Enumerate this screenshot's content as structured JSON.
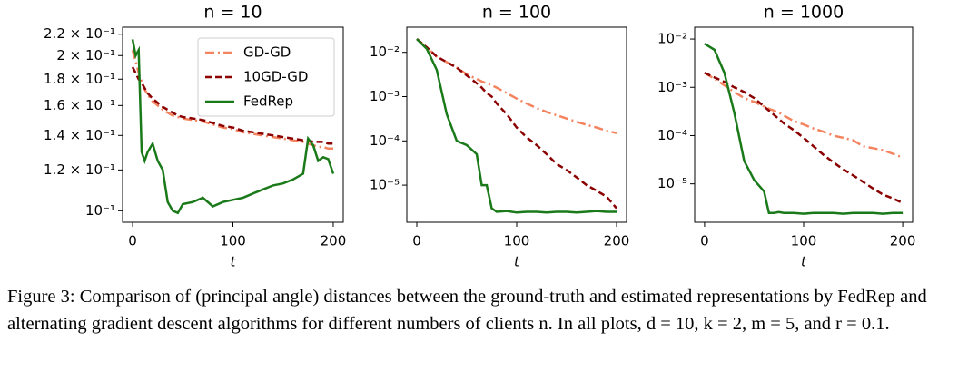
{
  "chart_data": [
    {
      "type": "line",
      "title": "n = 10",
      "xlabel": "t",
      "x": [
        0,
        3,
        6,
        9,
        12,
        15,
        20,
        25,
        30,
        35,
        40,
        45,
        50,
        60,
        70,
        80,
        90,
        100,
        110,
        120,
        130,
        140,
        150,
        160,
        170,
        175,
        180,
        185,
        190,
        195,
        200
      ],
      "xlim": [
        -10,
        210
      ],
      "xticks": [
        0,
        100,
        200
      ],
      "ylim": [
        0.095,
        0.227
      ],
      "yscale": "log",
      "yticks": [
        {
          "value": 0.1,
          "label": "10⁻¹"
        },
        {
          "value": 0.12,
          "label": "1.2 × 10⁻¹"
        },
        {
          "value": 0.14,
          "label": "1.4 × 10⁻¹"
        },
        {
          "value": 0.16,
          "label": "1.6 × 10⁻¹"
        },
        {
          "value": 0.18,
          "label": "1.8 × 10⁻¹"
        },
        {
          "value": 0.2,
          "label": "2 × 10⁻¹"
        },
        {
          "value": 0.22,
          "label": "2.2 × 10⁻¹"
        }
      ],
      "legend": "upper right",
      "series": [
        {
          "name": "GD-GD",
          "color": "#f4845f",
          "style": "dash-dot",
          "values": [
            0.205,
            0.195,
            0.185,
            0.178,
            0.172,
            0.168,
            0.163,
            0.16,
            0.157,
            0.155,
            0.153,
            0.152,
            0.151,
            0.15,
            0.149,
            0.147,
            0.145,
            0.144,
            0.142,
            0.141,
            0.14,
            0.139,
            0.138,
            0.137,
            0.136,
            0.135,
            0.134,
            0.133,
            0.133,
            0.132,
            0.132
          ]
        },
        {
          "name": "10GD-GD",
          "color": "#8b0000",
          "style": "dashed",
          "values": [
            0.19,
            0.185,
            0.18,
            0.177,
            0.173,
            0.169,
            0.165,
            0.162,
            0.159,
            0.157,
            0.155,
            0.153,
            0.152,
            0.151,
            0.15,
            0.148,
            0.146,
            0.145,
            0.143,
            0.142,
            0.141,
            0.14,
            0.139,
            0.138,
            0.137,
            0.137,
            0.136,
            0.136,
            0.136,
            0.135,
            0.135
          ]
        },
        {
          "name": "FedRep",
          "color": "#1a7a1a",
          "style": "solid",
          "values": [
            0.215,
            0.2,
            0.205,
            0.13,
            0.125,
            0.13,
            0.135,
            0.125,
            0.12,
            0.104,
            0.1,
            0.099,
            0.103,
            0.104,
            0.106,
            0.102,
            0.104,
            0.105,
            0.106,
            0.108,
            0.11,
            0.112,
            0.113,
            0.115,
            0.118,
            0.138,
            0.134,
            0.125,
            0.127,
            0.126,
            0.118
          ]
        }
      ]
    },
    {
      "type": "line",
      "title": "n = 100",
      "xlabel": "t",
      "x": [
        0,
        10,
        20,
        30,
        40,
        50,
        60,
        65,
        70,
        75,
        80,
        90,
        100,
        110,
        120,
        130,
        140,
        150,
        160,
        170,
        180,
        190,
        200
      ],
      "xlim": [
        -10,
        210
      ],
      "xticks": [
        0,
        100,
        200
      ],
      "ylim": [
        1.45e-06,
        0.037
      ],
      "yscale": "log",
      "yticks": [
        {
          "value": 1e-05,
          "label": "10⁻⁵"
        },
        {
          "value": 0.0001,
          "label": "10⁻⁴"
        },
        {
          "value": 0.001,
          "label": "10⁻³"
        },
        {
          "value": 0.01,
          "label": "10⁻²"
        }
      ],
      "series": [
        {
          "color": "#f4845f",
          "style": "dash-dot",
          "values": [
            0.02,
            0.013,
            0.008,
            0.006,
            0.0045,
            0.0032,
            0.0025,
            0.0022,
            0.002,
            0.0018,
            0.0016,
            0.0012,
            0.0009,
            0.0007,
            0.00055,
            0.00045,
            0.00038,
            0.00032,
            0.00027,
            0.00023,
            0.0002,
            0.00017,
            0.00015
          ]
        },
        {
          "color": "#8b0000",
          "style": "dashed",
          "values": [
            0.02,
            0.013,
            0.008,
            0.006,
            0.0045,
            0.003,
            0.002,
            0.0016,
            0.0012,
            0.001,
            0.0007,
            0.0004,
            0.0002,
            0.00012,
            8e-05,
            5e-05,
            3e-05,
            2.2e-05,
            1.5e-05,
            1e-05,
            7.5e-06,
            5.5e-06,
            3e-06
          ]
        },
        {
          "color": "#1a7a1a",
          "style": "solid",
          "values": [
            0.02,
            0.012,
            0.004,
            0.0004,
            0.0001,
            8e-05,
            5e-05,
            1e-05,
            1e-05,
            3e-06,
            2.5e-06,
            2.6e-06,
            2.4e-06,
            2.5e-06,
            2.5e-06,
            2.4e-06,
            2.5e-06,
            2.5e-06,
            2.4e-06,
            2.5e-06,
            2.6e-06,
            2.5e-06,
            2.5e-06
          ]
        }
      ]
    },
    {
      "type": "line",
      "title": "n = 1000",
      "xlabel": "t",
      "x": [
        0,
        10,
        20,
        30,
        40,
        50,
        60,
        65,
        70,
        75,
        80,
        90,
        100,
        110,
        120,
        130,
        140,
        150,
        160,
        170,
        180,
        190,
        200
      ],
      "xlim": [
        -10,
        210
      ],
      "xticks": [
        0,
        100,
        200
      ],
      "ylim": [
        1.6e-06,
        0.0176
      ],
      "yscale": "log",
      "yticks": [
        {
          "value": 1e-05,
          "label": "10⁻⁵"
        },
        {
          "value": 0.0001,
          "label": "10⁻⁴"
        },
        {
          "value": 0.001,
          "label": "10⁻³"
        },
        {
          "value": 0.01,
          "label": "10⁻²"
        }
      ],
      "series": [
        {
          "color": "#f4845f",
          "style": "dash-dot",
          "values": [
            0.002,
            0.0015,
            0.0011,
            0.0008,
            0.0006,
            0.0005,
            0.0004,
            0.00036,
            0.00033,
            0.0003,
            0.00026,
            0.0002,
            0.00017,
            0.00014,
            0.00012,
            0.0001,
            9e-05,
            8e-05,
            6e-05,
            5.5e-05,
            5e-05,
            4.2e-05,
            3.5e-05
          ]
        },
        {
          "color": "#8b0000",
          "style": "dashed",
          "values": [
            0.002,
            0.0016,
            0.0013,
            0.001,
            0.0008,
            0.0006,
            0.0004,
            0.00033,
            0.00027,
            0.00022,
            0.00018,
            0.00013,
            9e-05,
            6e-05,
            4e-05,
            2.8e-05,
            2e-05,
            1.5e-05,
            1.1e-05,
            8e-06,
            6e-06,
            5e-06,
            4e-06
          ]
        },
        {
          "color": "#1a7a1a",
          "style": "solid",
          "values": [
            0.008,
            0.006,
            0.002,
            0.0003,
            3e-05,
            1.2e-05,
            7e-06,
            2.5e-06,
            2.5e-06,
            2.6e-06,
            2.5e-06,
            2.5e-06,
            2.4e-06,
            2.5e-06,
            2.5e-06,
            2.5e-06,
            2.4e-06,
            2.5e-06,
            2.5e-06,
            2.5e-06,
            2.4e-06,
            2.5e-06,
            2.5e-06
          ]
        }
      ]
    }
  ],
  "caption": "Figure 3: Comparison of (principal angle) distances between the ground-truth and estimated representations by FedRep and alternating gradient descent algorithms for different numbers of clients n. In all plots, d = 10, k = 2, m = 5, and r = 0.1."
}
